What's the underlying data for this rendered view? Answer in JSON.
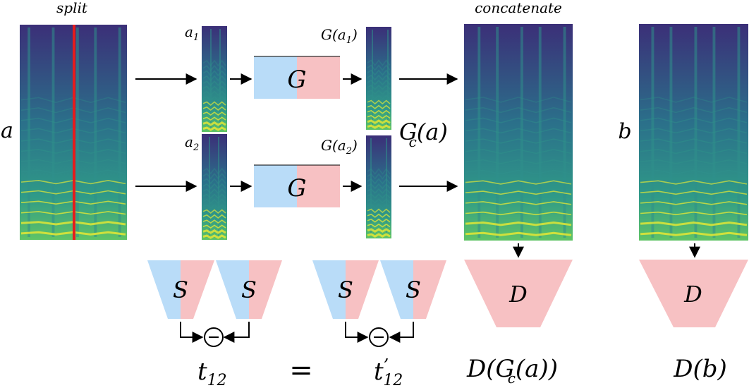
{
  "labels": {
    "split": "split",
    "concatenate": "concatenate",
    "input_a": "a",
    "input_b": "b",
    "a1": "a",
    "a1_sub": "1",
    "a2": "a",
    "a2_sub": "2",
    "generator": "G",
    "g_a1_prefix": "G(a",
    "g_a1_sub": "1",
    "g_a1_suffix": ")",
    "g_a2_prefix": "G(a",
    "g_a2_sub": "2",
    "g_a2_suffix": ")",
    "gc_main": "G",
    "gc_sub": "c",
    "gc_arg": "(a)",
    "siamese": "S",
    "discriminator": "D",
    "minus": "−",
    "t12_main": "t",
    "t12_sub": "12",
    "equals": "=",
    "t12p_main": "t",
    "t12p_prime": "’",
    "t12p_sub": "12",
    "d_gc_prefix": "D(G",
    "d_gc_sub": "c",
    "d_gc_suffix": "(a))",
    "d_b": "D(b)"
  },
  "colors": {
    "spectrogram_bg": "#3b2f78",
    "spectrogram_mid": "#2f8f8a",
    "spectrogram_hi": "#d7e33a",
    "split_line": "#e51c1c",
    "left_half": "#b9dcf8",
    "right_half": "#f7c1c3",
    "stroke": "#000000"
  },
  "icons": {
    "spectrogram": "spectrogram-image",
    "split_marker": "split-line"
  }
}
